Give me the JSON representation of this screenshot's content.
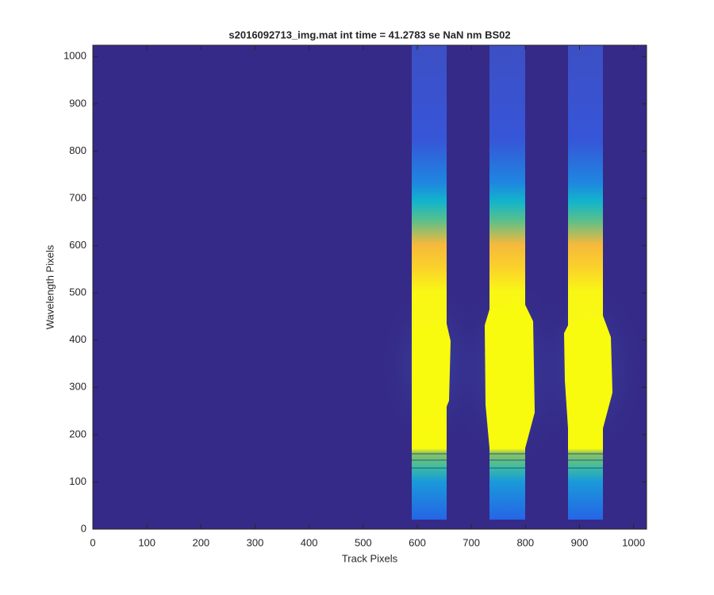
{
  "chart_data": {
    "type": "heatmap",
    "title": "s2016092713_img.mat int time = 41.2783 se  NaN nm BS02",
    "x_label": "Track Pixels",
    "y_label": "Wavelength Pixels",
    "xlim": [
      0,
      1024
    ],
    "ylim": [
      0,
      1024
    ],
    "xticks": [
      0,
      100,
      200,
      300,
      400,
      500,
      600,
      700,
      800,
      900,
      1000
    ],
    "yticks": [
      0,
      100,
      200,
      300,
      400,
      500,
      600,
      700,
      800,
      900,
      1000
    ],
    "background_color": "#352a87"
  }
}
